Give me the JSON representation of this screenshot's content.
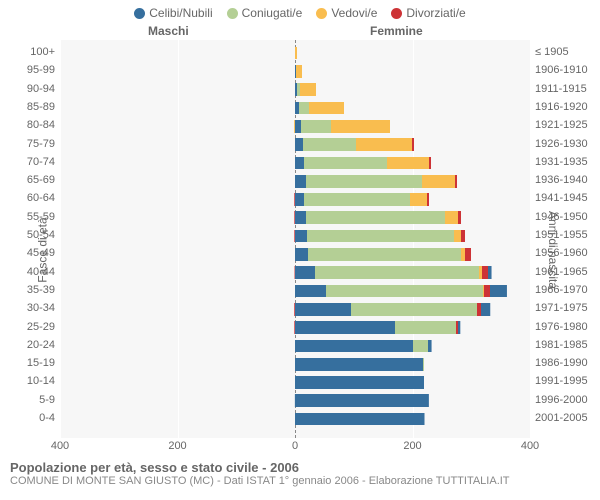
{
  "chart": {
    "type": "population-pyramid",
    "legend": [
      {
        "label": "Celibi/Nubili",
        "color": "#366f9e"
      },
      {
        "label": "Coniugati/e",
        "color": "#b4cf95"
      },
      {
        "label": "Vedovi/e",
        "color": "#f9bd4f"
      },
      {
        "label": "Divorziati/e",
        "color": "#cd3336"
      }
    ],
    "left_header": "Maschi",
    "right_header": "Femmine",
    "y_axis_left_title": "Fasce di età",
    "y_axis_right_title": "Anni di nascita",
    "x_max": 400,
    "x_ticks": [
      400,
      200,
      0,
      200,
      400
    ],
    "grid_at": [
      400,
      200,
      0,
      200,
      400
    ],
    "background_color": "#f7f7f7",
    "grid_color": "#ffffff",
    "center_line_color": "#888888",
    "row_height": 14.3,
    "bars": [
      {
        "age": "100+",
        "birth": "≤ 1905",
        "m": {
          "single": 0,
          "married": 0,
          "widowed": 0,
          "divorced": 0
        },
        "f": {
          "single": 0,
          "married": 0,
          "widowed": 3,
          "divorced": 0
        }
      },
      {
        "age": "95-99",
        "birth": "1906-1910",
        "m": {
          "single": 2,
          "married": 0,
          "widowed": 0,
          "divorced": 0
        },
        "f": {
          "single": 2,
          "married": 0,
          "widowed": 10,
          "divorced": 0
        }
      },
      {
        "age": "90-94",
        "birth": "1911-1915",
        "m": {
          "single": 4,
          "married": 6,
          "widowed": 4,
          "divorced": 0
        },
        "f": {
          "single": 4,
          "married": 4,
          "widowed": 28,
          "divorced": 0
        }
      },
      {
        "age": "85-89",
        "birth": "1916-1920",
        "m": {
          "single": 6,
          "married": 30,
          "widowed": 10,
          "divorced": 0
        },
        "f": {
          "single": 6,
          "married": 18,
          "widowed": 60,
          "divorced": 0
        }
      },
      {
        "age": "80-84",
        "birth": "1921-1925",
        "m": {
          "single": 10,
          "married": 85,
          "widowed": 20,
          "divorced": 0
        },
        "f": {
          "single": 10,
          "married": 52,
          "widowed": 100,
          "divorced": 0
        }
      },
      {
        "age": "75-79",
        "birth": "1926-1930",
        "m": {
          "single": 14,
          "married": 130,
          "widowed": 16,
          "divorced": 0
        },
        "f": {
          "single": 14,
          "married": 90,
          "widowed": 96,
          "divorced": 3
        }
      },
      {
        "age": "70-74",
        "birth": "1931-1935",
        "m": {
          "single": 16,
          "married": 170,
          "widowed": 12,
          "divorced": 3
        },
        "f": {
          "single": 16,
          "married": 140,
          "widowed": 72,
          "divorced": 3
        }
      },
      {
        "age": "65-69",
        "birth": "1936-1940",
        "m": {
          "single": 20,
          "married": 230,
          "widowed": 8,
          "divorced": 3
        },
        "f": {
          "single": 18,
          "married": 198,
          "widowed": 56,
          "divorced": 3
        }
      },
      {
        "age": "60-64",
        "birth": "1941-1945",
        "m": {
          "single": 22,
          "married": 190,
          "widowed": 4,
          "divorced": 3
        },
        "f": {
          "single": 16,
          "married": 180,
          "widowed": 28,
          "divorced": 4
        }
      },
      {
        "age": "55-59",
        "birth": "1946-1950",
        "m": {
          "single": 28,
          "married": 230,
          "widowed": 3,
          "divorced": 4
        },
        "f": {
          "single": 18,
          "married": 238,
          "widowed": 22,
          "divorced": 5
        }
      },
      {
        "age": "50-54",
        "birth": "1951-1955",
        "m": {
          "single": 34,
          "married": 240,
          "widowed": 2,
          "divorced": 6
        },
        "f": {
          "single": 20,
          "married": 250,
          "widowed": 12,
          "divorced": 7
        }
      },
      {
        "age": "45-49",
        "birth": "1956-1960",
        "m": {
          "single": 40,
          "married": 250,
          "widowed": 2,
          "divorced": 6
        },
        "f": {
          "single": 22,
          "married": 260,
          "widowed": 8,
          "divorced": 9
        }
      },
      {
        "age": "40-44",
        "birth": "1961-1965",
        "m": {
          "single": 58,
          "married": 268,
          "widowed": 1,
          "divorced": 8
        },
        "f": {
          "single": 34,
          "married": 280,
          "widowed": 4,
          "divorced": 10
        }
      },
      {
        "age": "35-39",
        "birth": "1966-1970",
        "m": {
          "single": 96,
          "married": 256,
          "widowed": 0,
          "divorced": 8
        },
        "f": {
          "single": 52,
          "married": 268,
          "widowed": 2,
          "divorced": 10
        }
      },
      {
        "age": "30-34",
        "birth": "1971-1975",
        "m": {
          "single": 160,
          "married": 168,
          "widowed": 0,
          "divorced": 5
        },
        "f": {
          "single": 96,
          "married": 214,
          "widowed": 0,
          "divorced": 6
        }
      },
      {
        "age": "25-29",
        "birth": "1976-1980",
        "m": {
          "single": 224,
          "married": 56,
          "widowed": 0,
          "divorced": 2
        },
        "f": {
          "single": 170,
          "married": 104,
          "widowed": 0,
          "divorced": 3
        }
      },
      {
        "age": "20-24",
        "birth": "1981-1985",
        "m": {
          "single": 224,
          "married": 8,
          "widowed": 0,
          "divorced": 0
        },
        "f": {
          "single": 200,
          "married": 26,
          "widowed": 0,
          "divorced": 0
        }
      },
      {
        "age": "15-19",
        "birth": "1986-1990",
        "m": {
          "single": 205,
          "married": 0,
          "widowed": 0,
          "divorced": 0
        },
        "f": {
          "single": 218,
          "married": 2,
          "widowed": 0,
          "divorced": 0
        }
      },
      {
        "age": "10-14",
        "birth": "1991-1995",
        "m": {
          "single": 205,
          "married": 0,
          "widowed": 0,
          "divorced": 0
        },
        "f": {
          "single": 220,
          "married": 0,
          "widowed": 0,
          "divorced": 0
        }
      },
      {
        "age": "5-9",
        "birth": "1996-2000",
        "m": {
          "single": 228,
          "married": 0,
          "widowed": 0,
          "divorced": 0
        },
        "f": {
          "single": 200,
          "married": 0,
          "widowed": 0,
          "divorced": 0
        }
      },
      {
        "age": "0-4",
        "birth": "2001-2005",
        "m": {
          "single": 220,
          "married": 0,
          "widowed": 0,
          "divorced": 0
        },
        "f": {
          "single": 198,
          "married": 0,
          "widowed": 0,
          "divorced": 0
        }
      }
    ]
  },
  "footer": {
    "title": "Popolazione per età, sesso e stato civile - 2006",
    "subtitle": "COMUNE DI MONTE SAN GIUSTO (MC) - Dati ISTAT 1° gennaio 2006 - Elaborazione TUTTITALIA.IT"
  }
}
